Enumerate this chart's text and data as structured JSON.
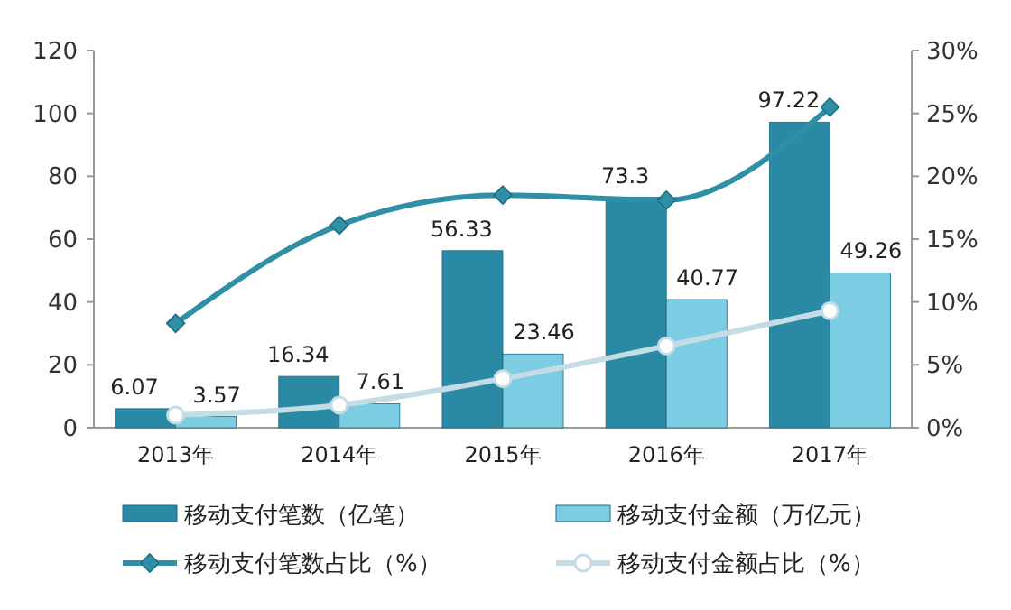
{
  "chart_data": {
    "type": "bar",
    "categories": [
      "2013年",
      "2014年",
      "2015年",
      "2016年",
      "2017年"
    ],
    "series": [
      {
        "name": "移动支付笔数（亿笔）",
        "color": "#2a8aa6",
        "values": [
          6.07,
          16.34,
          56.33,
          73.3,
          97.22
        ],
        "value_labels": [
          "6.07",
          "16.34",
          "56.33",
          "73.3",
          "97.22"
        ]
      },
      {
        "name": "移动支付金额（万亿元）",
        "color": "#7ccde3",
        "values": [
          3.57,
          7.61,
          23.46,
          40.77,
          49.26
        ],
        "value_labels": [
          "3.57",
          "7.61",
          "23.46",
          "40.77",
          "49.26"
        ]
      },
      {
        "name": "移动支付笔数占比（%）",
        "type": "line",
        "axis": "y2",
        "marker": "diamond",
        "color": "#2e8fa5",
        "values": [
          8.3,
          16.1,
          18.5,
          18.1,
          25.5
        ]
      },
      {
        "name": "移动支付金额占比（%）",
        "type": "line",
        "axis": "y2",
        "marker": "circle",
        "color": "#c5dce6",
        "values": [
          1.0,
          1.8,
          3.9,
          6.5,
          9.3
        ]
      }
    ],
    "ylim": [
      0,
      120
    ],
    "yticks": [
      0,
      20,
      40,
      60,
      80,
      100,
      120
    ],
    "y2lim": [
      0,
      30
    ],
    "y2ticks": [
      {
        "value": 0,
        "label": "0%"
      },
      {
        "value": 5,
        "label": "5%"
      },
      {
        "value": 10,
        "label": "10%"
      },
      {
        "value": 15,
        "label": "15%"
      },
      {
        "value": 20,
        "label": "20%"
      },
      {
        "value": 25,
        "label": "25%"
      },
      {
        "value": 30,
        "label": "30%"
      }
    ],
    "grid": false,
    "legend": "bottom"
  }
}
